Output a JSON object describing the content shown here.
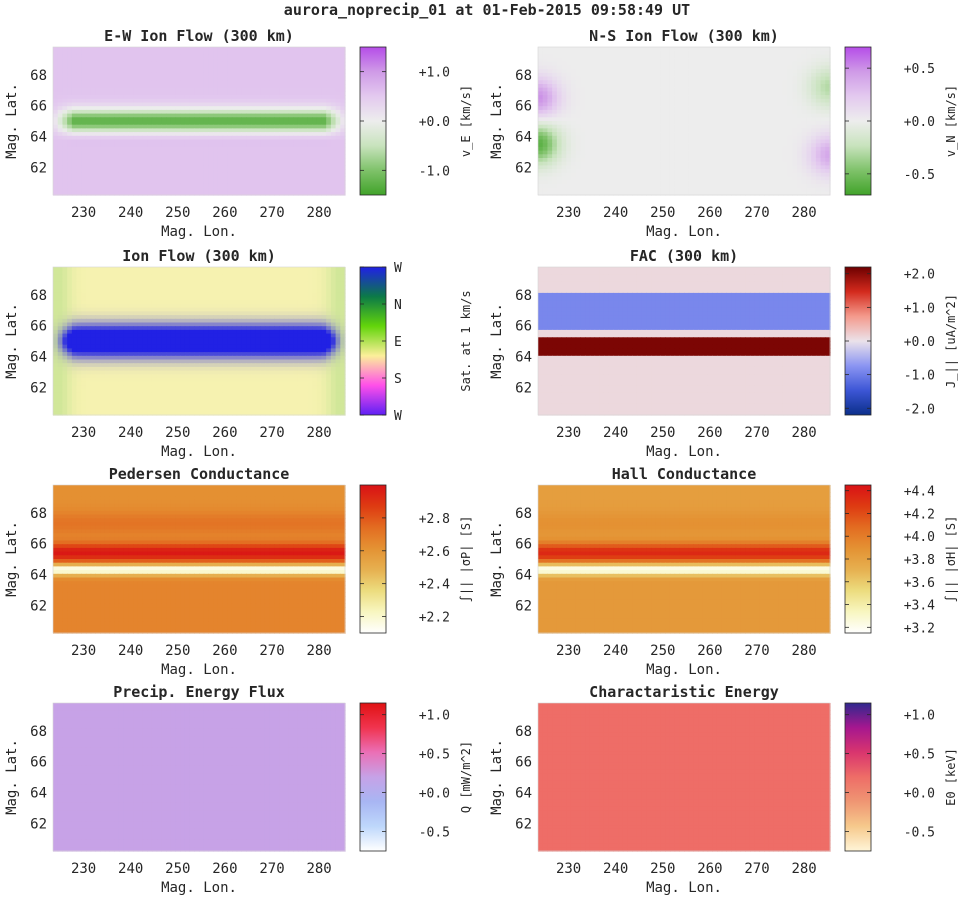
{
  "figure_title": "aurora_noprecip_01 at 01-Feb-2015 09:58:49 UT",
  "chart_data": [
    {
      "type": "heatmap",
      "title": "E-W Ion Flow (300 km)",
      "xlabel": "Mag. Lon.",
      "ylabel": "Mag. Lat.",
      "xlim": [
        223.5,
        285.5
      ],
      "ylim": [
        60.2,
        69.8
      ],
      "xticks": [
        "230",
        "240",
        "250",
        "260",
        "270",
        "280"
      ],
      "yticks": [
        "62",
        "64",
        "66",
        "68"
      ],
      "show_xlabel": true,
      "colorbar": {
        "label": "v_E [km/s]",
        "ticks": [
          "+1.0",
          "+0.0",
          "-1.0"
        ],
        "range": [
          -1.5,
          1.5
        ],
        "colormap": "diverging-purple-green"
      },
      "field": {
        "model": "band",
        "background": 0.55,
        "bands": [
          {
            "lat": 65.0,
            "width": 0.55,
            "amp": -1.8,
            "edge_fade": 2.0
          }
        ]
      }
    },
    {
      "type": "heatmap",
      "title": "N-S Ion Flow (300 km)",
      "xlabel": "Mag. Lon.",
      "ylabel": "Mag. Lat.",
      "xlim": [
        223.5,
        285.5
      ],
      "ylim": [
        60.2,
        69.8
      ],
      "xticks": [
        "230",
        "240",
        "250",
        "260",
        "270",
        "280"
      ],
      "yticks": [
        "62",
        "64",
        "66",
        "68"
      ],
      "show_xlabel": true,
      "colorbar": {
        "label": "v_N [km/s]",
        "ticks": [
          "+0.5",
          "+0.0",
          "-0.5"
        ],
        "range": [
          -0.7,
          0.7
        ],
        "colormap": "diverging-purple-green"
      },
      "field": {
        "model": "edges",
        "west": [
          {
            "lat": 66.5,
            "amp": 0.5
          },
          {
            "lat": 63.5,
            "amp": -0.6
          }
        ],
        "east": [
          {
            "lat": 67.2,
            "amp": -0.3
          },
          {
            "lat": 62.8,
            "amp": 0.4
          }
        ]
      }
    },
    {
      "type": "heatmap",
      "title": "Ion Flow (300 km)",
      "xlabel": "Mag. Lon.",
      "ylabel": "Mag. Lat.",
      "xlim": [
        223.5,
        285.5
      ],
      "ylim": [
        60.2,
        69.8
      ],
      "xticks": [
        "230",
        "240",
        "250",
        "260",
        "270",
        "280"
      ],
      "yticks": [
        "62",
        "64",
        "66",
        "68"
      ],
      "show_xlabel": true,
      "colorbar": {
        "label": "Sat. at 1 km/s",
        "ticks": [
          "W",
          "N",
          "E",
          "S",
          "W"
        ],
        "colormap": "cyclic-direction"
      },
      "field": {
        "model": "direction",
        "band_lat": 65.0,
        "band_width": 0.9
      }
    },
    {
      "type": "heatmap",
      "title": "FAC (300 km)",
      "xlabel": "Mag. Lon.",
      "ylabel": "Mag. Lat.",
      "xlim": [
        223.5,
        285.5
      ],
      "ylim": [
        60.2,
        69.8
      ],
      "xticks": [
        "230",
        "240",
        "250",
        "260",
        "270",
        "280"
      ],
      "yticks": [
        "62",
        "64",
        "66",
        "68"
      ],
      "show_xlabel": true,
      "colorbar": {
        "label": "J_|| [uA/m^2]",
        "ticks": [
          "+2.0",
          "+1.0",
          "+0.0",
          "-1.0",
          "-2.0"
        ],
        "range": [
          -2.2,
          2.2
        ],
        "colormap": "diverging-red-blue"
      },
      "field": {
        "model": "steps",
        "background": 0.1,
        "bands": [
          {
            "from": 65.7,
            "to": 68.0,
            "value": -0.9
          },
          {
            "from": 64.0,
            "to": 65.3,
            "value": 2.1
          }
        ]
      }
    },
    {
      "type": "heatmap",
      "title": "Pedersen Conductance",
      "xlabel": "Mag. Lon.",
      "ylabel": "Mag. Lat.",
      "xlim": [
        223.5,
        285.5
      ],
      "ylim": [
        60.2,
        69.8
      ],
      "xticks": [
        "230",
        "240",
        "250",
        "260",
        "270",
        "280"
      ],
      "yticks": [
        "62",
        "64",
        "66",
        "68"
      ],
      "show_xlabel": true,
      "colorbar": {
        "label": "∫|| |σP| [S]",
        "ticks": [
          "+2.8",
          "+2.6",
          "+2.4",
          "+2.2"
        ],
        "range": [
          2.1,
          3.0
        ],
        "colormap": "heat"
      },
      "field": {
        "model": "conductance",
        "base": 2.66,
        "north": 2.62,
        "peak_lat": 65.4,
        "peak": 2.98,
        "trough_lat": 64.3,
        "trough": 2.12,
        "north_band_lat": 67.3,
        "north_band": 2.78
      }
    },
    {
      "type": "heatmap",
      "title": "Hall Conductance",
      "xlabel": "Mag. Lon.",
      "ylabel": "Mag. Lat.",
      "xlim": [
        223.5,
        285.5
      ],
      "ylim": [
        60.2,
        69.8
      ],
      "xticks": [
        "230",
        "240",
        "250",
        "260",
        "270",
        "280"
      ],
      "yticks": [
        "62",
        "64",
        "66",
        "68"
      ],
      "show_xlabel": true,
      "colorbar": {
        "label": "∫|| |σH| [S]",
        "ticks": [
          "+4.4",
          "+4.2",
          "+4.0",
          "+3.8",
          "+3.6",
          "+3.4",
          "+3.2"
        ],
        "range": [
          3.15,
          4.45
        ],
        "colormap": "heat"
      },
      "field": {
        "model": "conductance",
        "base": 3.85,
        "north": 3.82,
        "peak_lat": 65.4,
        "peak": 4.35,
        "trough_lat": 64.3,
        "trough": 3.18,
        "north_band_lat": 67.3,
        "north_band": 3.95
      }
    },
    {
      "type": "heatmap",
      "title": "Precip. Energy Flux",
      "xlabel": "Mag. Lon.",
      "ylabel": "Mag. Lat.",
      "xlim": [
        223.5,
        285.5
      ],
      "ylim": [
        60.2,
        69.8
      ],
      "xticks": [
        "230",
        "240",
        "250",
        "260",
        "270",
        "280"
      ],
      "yticks": [
        "62",
        "64",
        "66",
        "68"
      ],
      "show_xlabel": true,
      "colorbar": {
        "label": "Q [mW/m^2]",
        "ticks": [
          "+1.0",
          "+0.5",
          "+0.0",
          "-0.5"
        ],
        "range": [
          -0.75,
          1.15
        ],
        "colormap": "white-blue-red"
      },
      "field": {
        "model": "uniform",
        "value": 0.0
      },
      "uniform_color": "#c7a2e7"
    },
    {
      "type": "heatmap",
      "title": "Charactaristic Energy",
      "xlabel": "Mag. Lon.",
      "ylabel": "Mag. Lat.",
      "xlim": [
        223.5,
        285.5
      ],
      "ylim": [
        60.2,
        69.8
      ],
      "xticks": [
        "230",
        "240",
        "250",
        "260",
        "270",
        "280"
      ],
      "yticks": [
        "62",
        "64",
        "66",
        "68"
      ],
      "show_xlabel": true,
      "colorbar": {
        "label": "E0 [keV]",
        "ticks": [
          "+1.0",
          "+0.5",
          "+0.0",
          "-0.5"
        ],
        "range": [
          -0.75,
          1.15
        ],
        "colormap": "cream-red-blue"
      },
      "field": {
        "model": "uniform",
        "value": 0.0
      },
      "uniform_color": "#ee6d67"
    }
  ],
  "colors": {
    "purple_green": [
      "#41a32a",
      "#7fc26a",
      "#c8e3bd",
      "#ededed",
      "#e3c9ef",
      "#cf9be7",
      "#b54de8"
    ],
    "red_blue": [
      "#0b2f8a",
      "#3d56d6",
      "#8b95f2",
      "#ebe2ea",
      "#f49a8c",
      "#d32a1d",
      "#6e0000"
    ],
    "heat": [
      "#ffffff",
      "#f8f6c0",
      "#ecdc7e",
      "#e6b050",
      "#e49233",
      "#e36c21",
      "#de3b12",
      "#d91216"
    ],
    "white_blue_red": [
      "#ffffff",
      "#bed7fb",
      "#a8b6f3",
      "#c6a2e7",
      "#eb6fb6",
      "#f0344f",
      "#e01213"
    ],
    "cream_red_blue": [
      "#fff5d8",
      "#f6c98c",
      "#ef9673",
      "#ee6d67",
      "#d9356e",
      "#a6178f",
      "#30288e"
    ],
    "direction": [
      "#5e20f4",
      "#ff4fe9",
      "#fcef9a",
      "#63d50b",
      "#0c7a47",
      "#2020e6"
    ]
  }
}
